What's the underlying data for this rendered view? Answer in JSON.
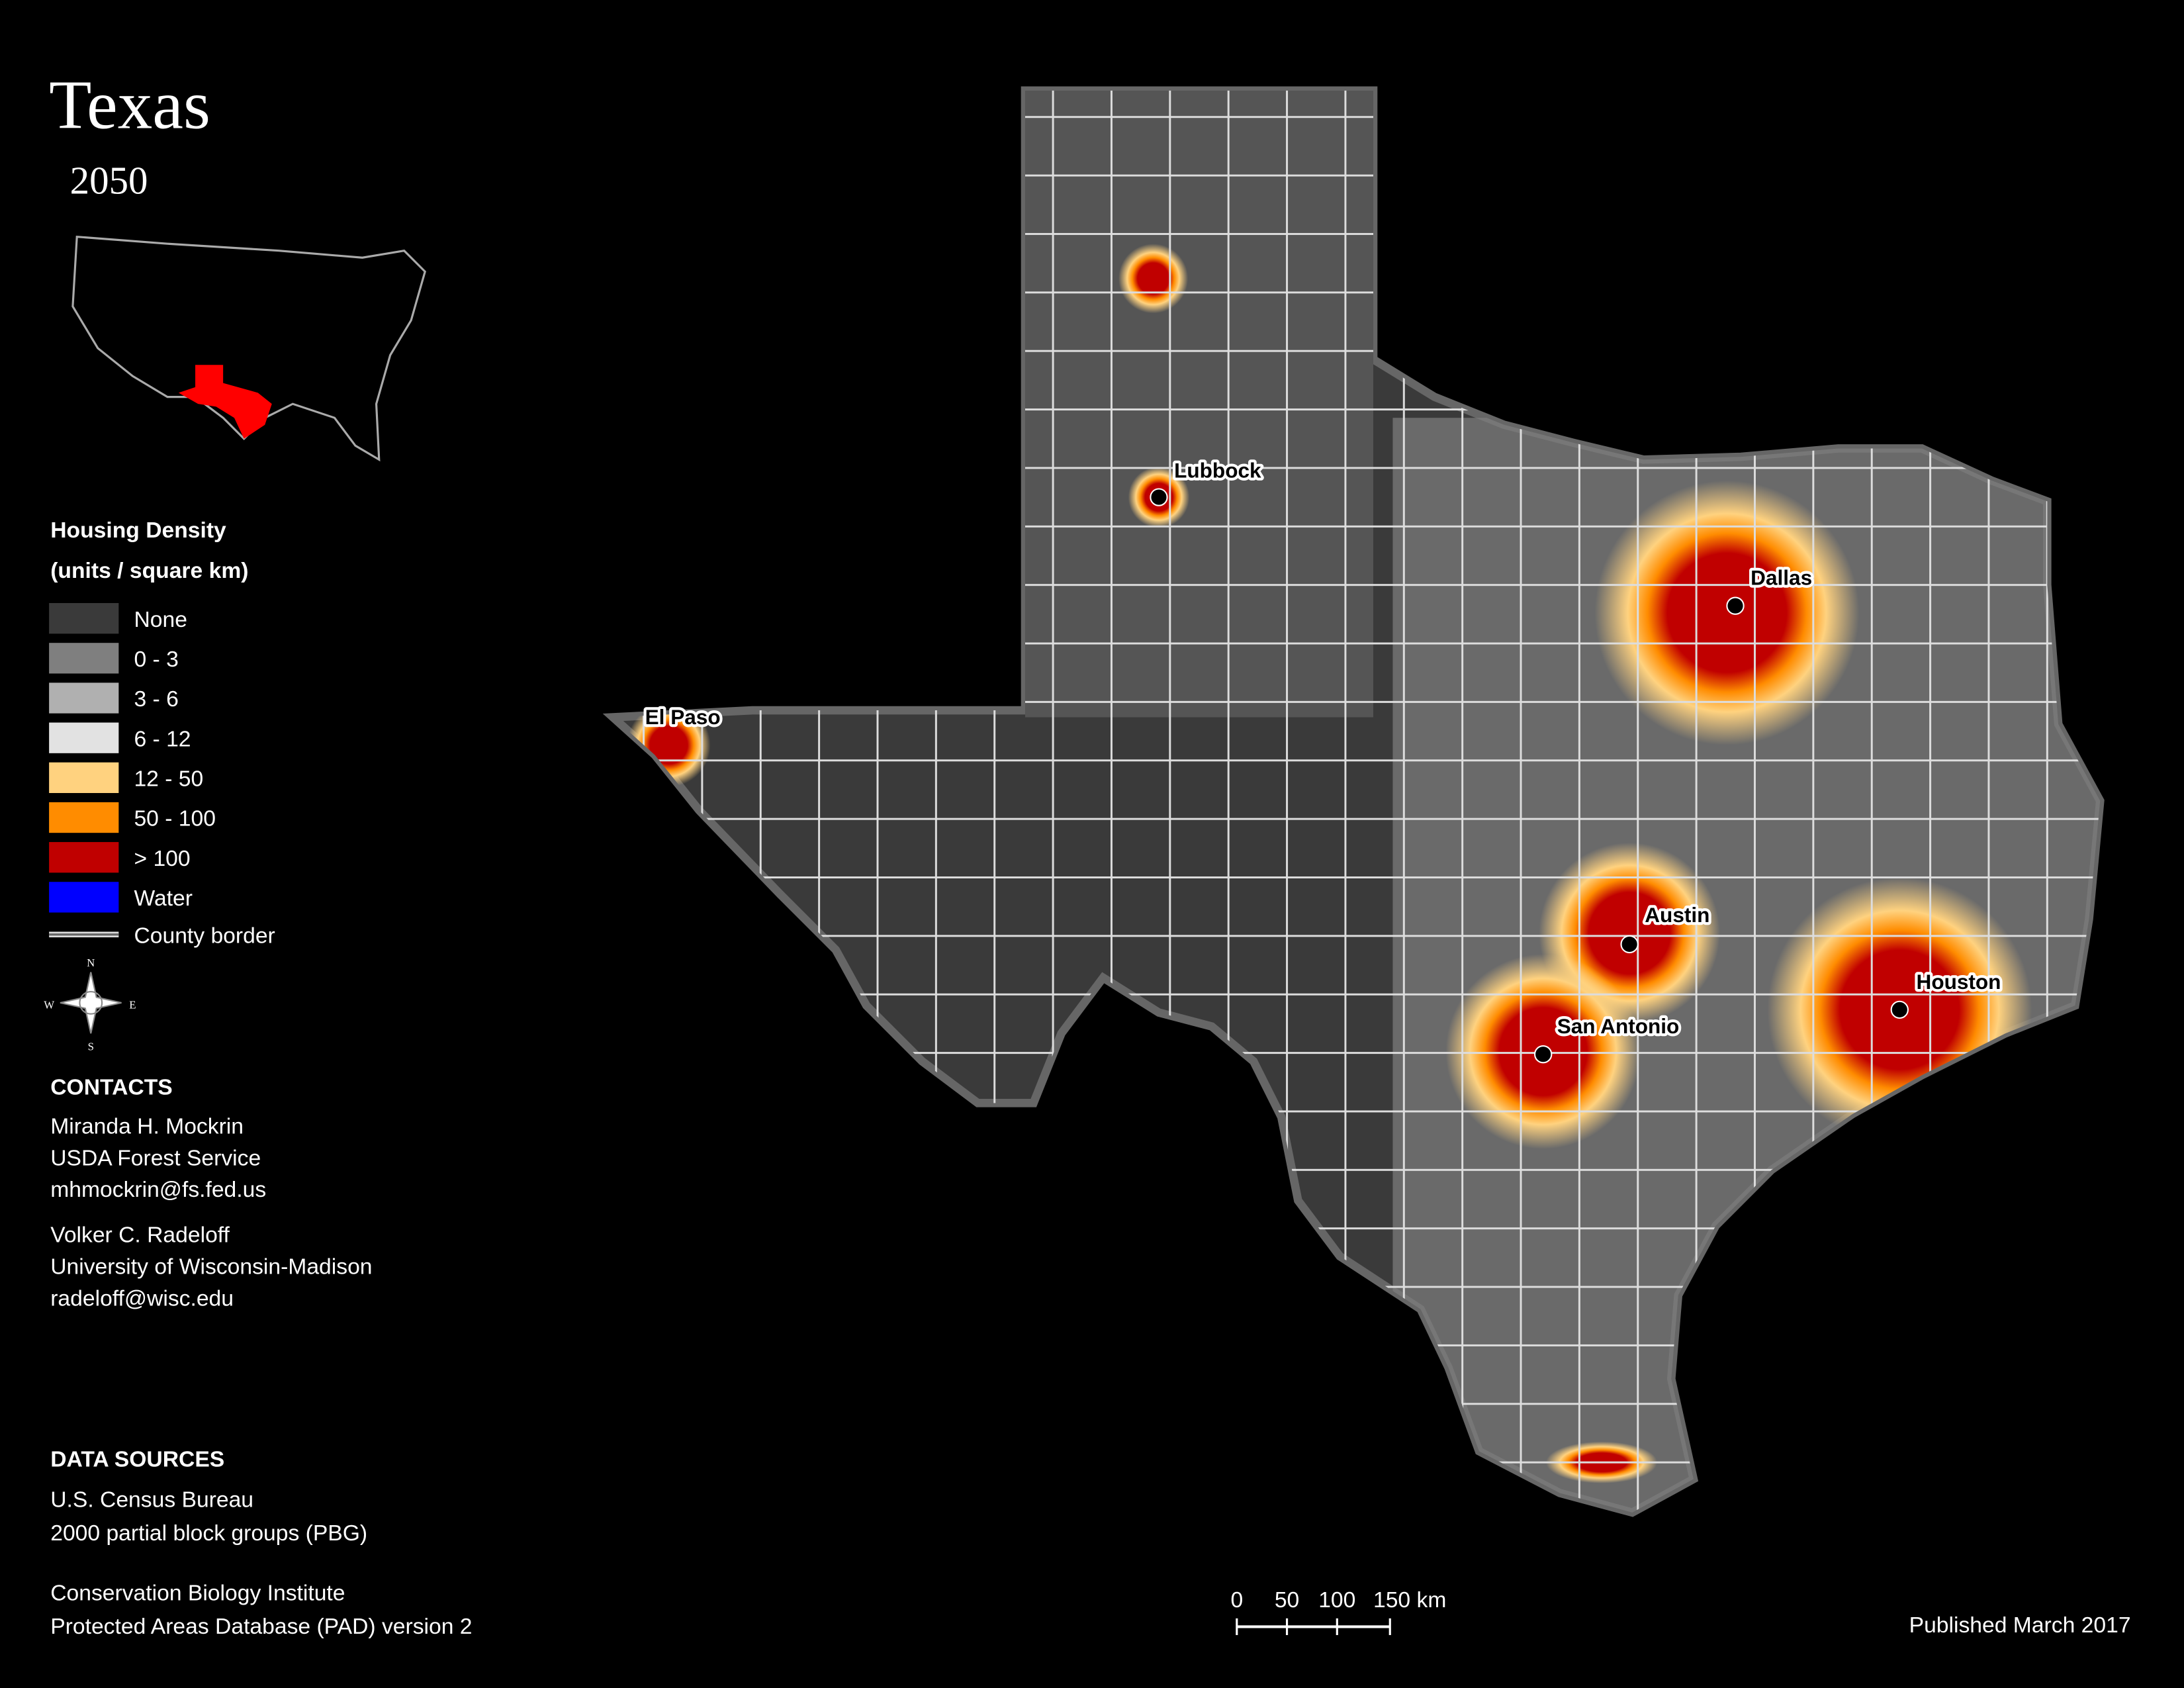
{
  "title": "Texas",
  "subtitle": "2050",
  "legend": {
    "heading": "Housing Density",
    "units": "(units / square km)",
    "items": [
      {
        "label": "None",
        "color": "#3a3a3a"
      },
      {
        "label": "0 - 3",
        "color": "#7f7f7f"
      },
      {
        "label": "3 - 6",
        "color": "#b0b0b0"
      },
      {
        "label": "6 - 12",
        "color": "#e2e2e2"
      },
      {
        "label": "12 - 50",
        "color": "#ffd27f"
      },
      {
        "label": "50 - 100",
        "color": "#ff8c00"
      },
      {
        "label": "> 100",
        "color": "#c00000"
      },
      {
        "label": "Water",
        "color": "#0000ff"
      }
    ],
    "border_label": "County border"
  },
  "compass": [
    "N",
    "E",
    "S",
    "W"
  ],
  "contacts": {
    "heading": "CONTACTS",
    "people": [
      [
        "Miranda H. Mockrin",
        "USDA Forest Service",
        "mhmockrin@fs.fed.us"
      ],
      [
        "Volker C. Radeloff",
        "University of Wisconsin-Madison",
        "radeloff@wisc.edu"
      ]
    ]
  },
  "data_sources": {
    "heading": "DATA SOURCES",
    "groups": [
      [
        "U.S. Census Bureau",
        "2000 partial block groups (PBG)"
      ],
      [
        "Conservation Biology Institute",
        "Protected Areas Database (PAD) version 2"
      ]
    ]
  },
  "cities": [
    "Lubbock",
    "Dallas",
    "El Paso",
    "Austin",
    "San Antonio",
    "Houston"
  ],
  "scale_bar": [
    "0",
    "50",
    "100",
    "150 km"
  ],
  "published": "Published March 2017"
}
